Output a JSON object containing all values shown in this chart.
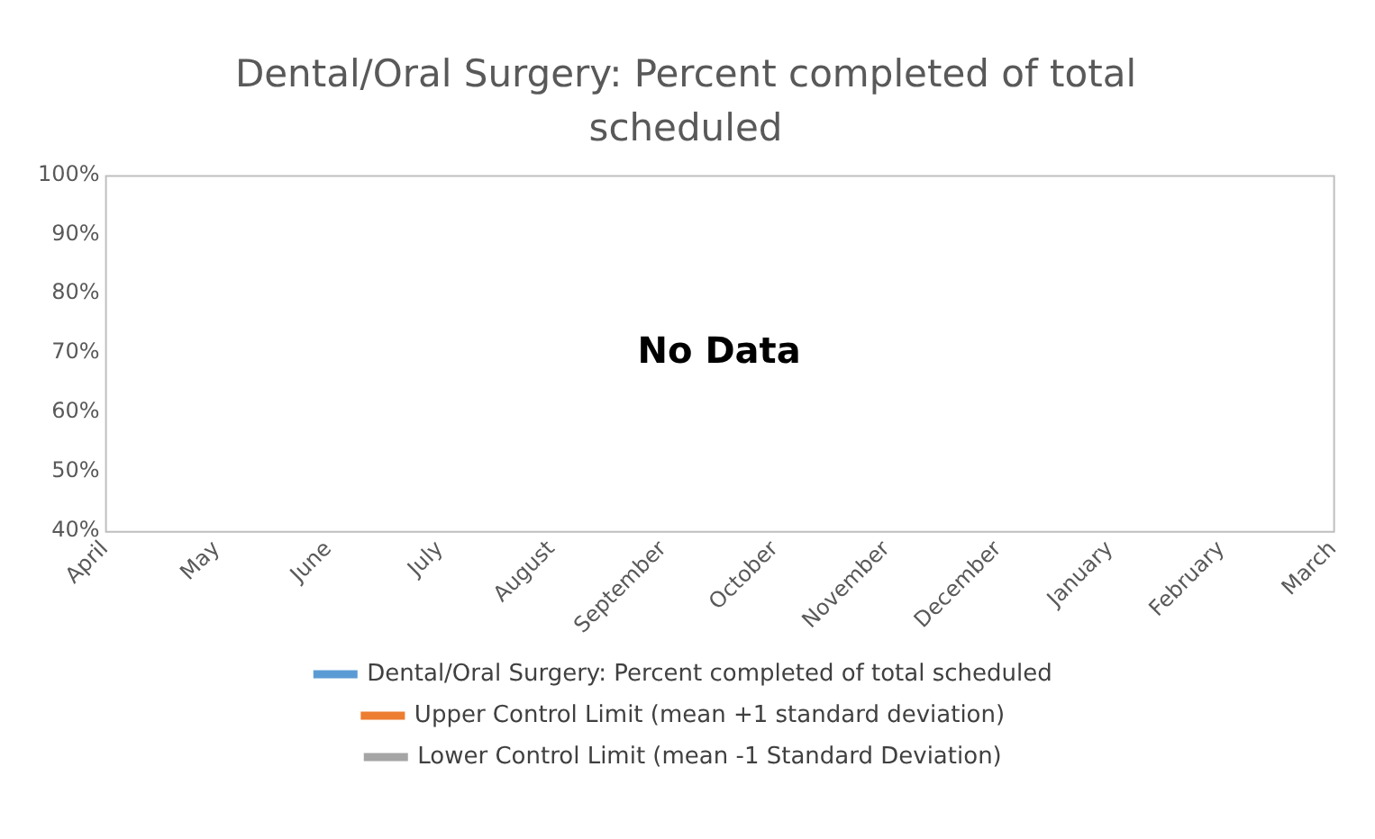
{
  "chart_data": {
    "type": "line",
    "title": "Dental/Oral Surgery: Percent completed of total scheduled",
    "categories": [
      "April",
      "May",
      "June",
      "July",
      "August",
      "September",
      "October",
      "November",
      "December",
      "January",
      "February",
      "March"
    ],
    "series": [
      {
        "name": "Dental/Oral Surgery: Percent completed of total scheduled",
        "color": "#5b9bd5",
        "values": [
          null,
          null,
          null,
          null,
          null,
          null,
          null,
          null,
          null,
          null,
          null,
          null
        ]
      },
      {
        "name": "Upper Control Limit (mean +1 standard deviation)",
        "color": "#ed7d31",
        "values": [
          null,
          null,
          null,
          null,
          null,
          null,
          null,
          null,
          null,
          null,
          null,
          null
        ]
      },
      {
        "name": "Lower Control Limit (mean -1 Standard Deviation)",
        "color": "#a5a5a5",
        "values": [
          null,
          null,
          null,
          null,
          null,
          null,
          null,
          null,
          null,
          null,
          null,
          null
        ]
      }
    ],
    "ylim": [
      40,
      100
    ],
    "yticks": [
      {
        "value": 40,
        "label": "40%"
      },
      {
        "value": 50,
        "label": "50%"
      },
      {
        "value": 60,
        "label": "60%"
      },
      {
        "value": 70,
        "label": "70%"
      },
      {
        "value": 80,
        "label": "80%"
      },
      {
        "value": 90,
        "label": "90%"
      },
      {
        "value": 100,
        "label": "100%"
      }
    ],
    "annotations": [
      "No Data"
    ],
    "grid": false,
    "legend": "bottom"
  }
}
